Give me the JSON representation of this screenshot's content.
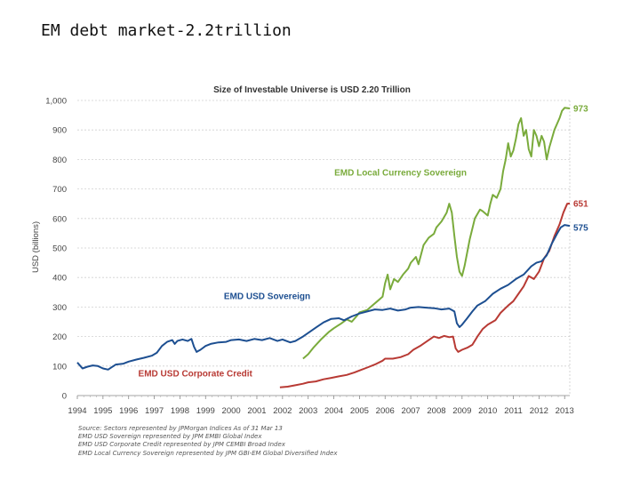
{
  "slide": {
    "title": "EM debt market-2.2trillion"
  },
  "sources": [
    "Source: Sectors represented by JPMorgan Indices As of 31 Mar 13",
    "EMD USD Sovereign represented by JPM EMBI Global Index",
    "EMD USD Corporate Credit represented by JPM CEMBI Broad Index",
    "EMD Local Currency Sovereign represented by JPM GBI-EM Global Diversified Index"
  ],
  "chart_data": {
    "type": "line",
    "title": "Size of Investable Universe is USD 2.20 Trillion",
    "ylabel": "USD (billions)",
    "xlabel": "",
    "ylim": [
      0,
      1000
    ],
    "xlim": [
      1994,
      2013.2
    ],
    "yticks": [
      "0",
      "100",
      "200",
      "300",
      "400",
      "500",
      "600",
      "700",
      "800",
      "900",
      "1,000"
    ],
    "xticks": [
      "1994",
      "1995",
      "1996",
      "1997",
      "1998",
      "1999",
      "2000",
      "2001",
      "2002",
      "2003",
      "2004",
      "2005",
      "2006",
      "2007",
      "2008",
      "2009",
      "2010",
      "2011",
      "2012",
      "2013"
    ],
    "grid": true,
    "legend": "inline labels",
    "series": [
      {
        "name": "EMD Local Currency Sovereign",
        "color": "#7aab3c",
        "end_label": "973",
        "points": [
          [
            2002.8,
            125
          ],
          [
            2003.0,
            140
          ],
          [
            2003.2,
            162
          ],
          [
            2003.5,
            190
          ],
          [
            2003.8,
            215
          ],
          [
            2004.0,
            228
          ],
          [
            2004.3,
            245
          ],
          [
            2004.5,
            258
          ],
          [
            2004.7,
            250
          ],
          [
            2004.9,
            270
          ],
          [
            2005.0,
            282
          ],
          [
            2005.3,
            290
          ],
          [
            2005.5,
            305
          ],
          [
            2005.7,
            320
          ],
          [
            2005.9,
            335
          ],
          [
            2006.0,
            380
          ],
          [
            2006.1,
            410
          ],
          [
            2006.2,
            360
          ],
          [
            2006.35,
            395
          ],
          [
            2006.5,
            385
          ],
          [
            2006.7,
            410
          ],
          [
            2006.9,
            430
          ],
          [
            2007.0,
            450
          ],
          [
            2007.2,
            470
          ],
          [
            2007.3,
            445
          ],
          [
            2007.5,
            510
          ],
          [
            2007.7,
            535
          ],
          [
            2007.9,
            548
          ],
          [
            2008.0,
            570
          ],
          [
            2008.2,
            590
          ],
          [
            2008.4,
            620
          ],
          [
            2008.5,
            650
          ],
          [
            2008.6,
            620
          ],
          [
            2008.7,
            540
          ],
          [
            2008.8,
            470
          ],
          [
            2008.9,
            420
          ],
          [
            2009.0,
            405
          ],
          [
            2009.1,
            440
          ],
          [
            2009.3,
            530
          ],
          [
            2009.5,
            600
          ],
          [
            2009.7,
            630
          ],
          [
            2009.8,
            625
          ],
          [
            2010.0,
            610
          ],
          [
            2010.1,
            650
          ],
          [
            2010.2,
            680
          ],
          [
            2010.35,
            670
          ],
          [
            2010.5,
            700
          ],
          [
            2010.6,
            760
          ],
          [
            2010.7,
            800
          ],
          [
            2010.8,
            855
          ],
          [
            2010.9,
            810
          ],
          [
            2011.0,
            830
          ],
          [
            2011.1,
            870
          ],
          [
            2011.2,
            920
          ],
          [
            2011.3,
            940
          ],
          [
            2011.4,
            880
          ],
          [
            2011.5,
            900
          ],
          [
            2011.6,
            835
          ],
          [
            2011.7,
            810
          ],
          [
            2011.8,
            900
          ],
          [
            2011.9,
            880
          ],
          [
            2012.0,
            845
          ],
          [
            2012.1,
            880
          ],
          [
            2012.2,
            860
          ],
          [
            2012.3,
            800
          ],
          [
            2012.4,
            840
          ],
          [
            2012.6,
            900
          ],
          [
            2012.8,
            940
          ],
          [
            2012.9,
            965
          ],
          [
            2013.0,
            975
          ],
          [
            2013.2,
            973
          ]
        ]
      },
      {
        "name": "EMD USD Corporate Credit",
        "color": "#b83a34",
        "end_label": "651",
        "points": [
          [
            2001.9,
            28
          ],
          [
            2002.2,
            30
          ],
          [
            2002.5,
            35
          ],
          [
            2002.8,
            40
          ],
          [
            2003.0,
            45
          ],
          [
            2003.3,
            48
          ],
          [
            2003.6,
            55
          ],
          [
            2003.9,
            60
          ],
          [
            2004.2,
            65
          ],
          [
            2004.5,
            70
          ],
          [
            2004.8,
            78
          ],
          [
            2005.0,
            85
          ],
          [
            2005.3,
            95
          ],
          [
            2005.6,
            105
          ],
          [
            2005.9,
            118
          ],
          [
            2006.0,
            125
          ],
          [
            2006.3,
            125
          ],
          [
            2006.6,
            130
          ],
          [
            2006.9,
            140
          ],
          [
            2007.1,
            155
          ],
          [
            2007.4,
            170
          ],
          [
            2007.7,
            188
          ],
          [
            2007.9,
            200
          ],
          [
            2008.1,
            195
          ],
          [
            2008.3,
            202
          ],
          [
            2008.5,
            198
          ],
          [
            2008.65,
            200
          ],
          [
            2008.75,
            160
          ],
          [
            2008.85,
            148
          ],
          [
            2009.0,
            155
          ],
          [
            2009.2,
            162
          ],
          [
            2009.4,
            172
          ],
          [
            2009.6,
            200
          ],
          [
            2009.8,
            225
          ],
          [
            2010.0,
            240
          ],
          [
            2010.3,
            255
          ],
          [
            2010.5,
            280
          ],
          [
            2010.8,
            305
          ],
          [
            2011.0,
            320
          ],
          [
            2011.2,
            345
          ],
          [
            2011.4,
            370
          ],
          [
            2011.6,
            405
          ],
          [
            2011.8,
            395
          ],
          [
            2012.0,
            420
          ],
          [
            2012.2,
            465
          ],
          [
            2012.4,
            490
          ],
          [
            2012.6,
            540
          ],
          [
            2012.8,
            580
          ],
          [
            2012.95,
            620
          ],
          [
            2013.1,
            650
          ],
          [
            2013.2,
            651
          ]
        ]
      },
      {
        "name": "EMD USD Sovereign",
        "color": "#1d4f91",
        "end_label": "575",
        "points": [
          [
            1994.0,
            112
          ],
          [
            1994.2,
            92
          ],
          [
            1994.4,
            98
          ],
          [
            1994.6,
            102
          ],
          [
            1994.8,
            100
          ],
          [
            1995.0,
            92
          ],
          [
            1995.2,
            88
          ],
          [
            1995.5,
            105
          ],
          [
            1995.8,
            108
          ],
          [
            1996.0,
            115
          ],
          [
            1996.3,
            122
          ],
          [
            1996.6,
            128
          ],
          [
            1996.9,
            135
          ],
          [
            1997.1,
            145
          ],
          [
            1997.3,
            168
          ],
          [
            1997.5,
            182
          ],
          [
            1997.7,
            188
          ],
          [
            1997.8,
            175
          ],
          [
            1997.9,
            185
          ],
          [
            1998.1,
            190
          ],
          [
            1998.3,
            185
          ],
          [
            1998.45,
            192
          ],
          [
            1998.55,
            165
          ],
          [
            1998.65,
            148
          ],
          [
            1998.8,
            155
          ],
          [
            1999.0,
            168
          ],
          [
            1999.2,
            175
          ],
          [
            1999.5,
            180
          ],
          [
            1999.8,
            182
          ],
          [
            2000.0,
            188
          ],
          [
            2000.3,
            190
          ],
          [
            2000.6,
            185
          ],
          [
            2000.9,
            192
          ],
          [
            2001.2,
            188
          ],
          [
            2001.5,
            195
          ],
          [
            2001.8,
            185
          ],
          [
            2002.0,
            190
          ],
          [
            2002.3,
            180
          ],
          [
            2002.5,
            185
          ],
          [
            2002.8,
            200
          ],
          [
            2003.0,
            212
          ],
          [
            2003.3,
            230
          ],
          [
            2003.6,
            248
          ],
          [
            2003.9,
            260
          ],
          [
            2004.2,
            262
          ],
          [
            2004.4,
            255
          ],
          [
            2004.7,
            268
          ],
          [
            2005.0,
            278
          ],
          [
            2005.3,
            285
          ],
          [
            2005.6,
            292
          ],
          [
            2005.9,
            290
          ],
          [
            2006.2,
            295
          ],
          [
            2006.5,
            288
          ],
          [
            2006.8,
            292
          ],
          [
            2007.0,
            298
          ],
          [
            2007.3,
            300
          ],
          [
            2007.6,
            298
          ],
          [
            2007.9,
            296
          ],
          [
            2008.2,
            292
          ],
          [
            2008.5,
            295
          ],
          [
            2008.7,
            285
          ],
          [
            2008.8,
            245
          ],
          [
            2008.9,
            232
          ],
          [
            2009.0,
            240
          ],
          [
            2009.2,
            262
          ],
          [
            2009.4,
            285
          ],
          [
            2009.6,
            305
          ],
          [
            2009.9,
            320
          ],
          [
            2010.2,
            345
          ],
          [
            2010.5,
            362
          ],
          [
            2010.8,
            375
          ],
          [
            2011.1,
            395
          ],
          [
            2011.4,
            410
          ],
          [
            2011.7,
            438
          ],
          [
            2011.9,
            450
          ],
          [
            2012.1,
            455
          ],
          [
            2012.3,
            475
          ],
          [
            2012.5,
            515
          ],
          [
            2012.7,
            548
          ],
          [
            2012.85,
            570
          ],
          [
            2013.0,
            578
          ],
          [
            2013.2,
            575
          ]
        ]
      }
    ],
    "annotations": [
      {
        "text": "EMD Local Currency Sovereign",
        "series": 0
      },
      {
        "text": "EMD USD Sovereign",
        "series": 2
      },
      {
        "text": "EMD USD Corporate Credit",
        "series": 1
      }
    ]
  }
}
